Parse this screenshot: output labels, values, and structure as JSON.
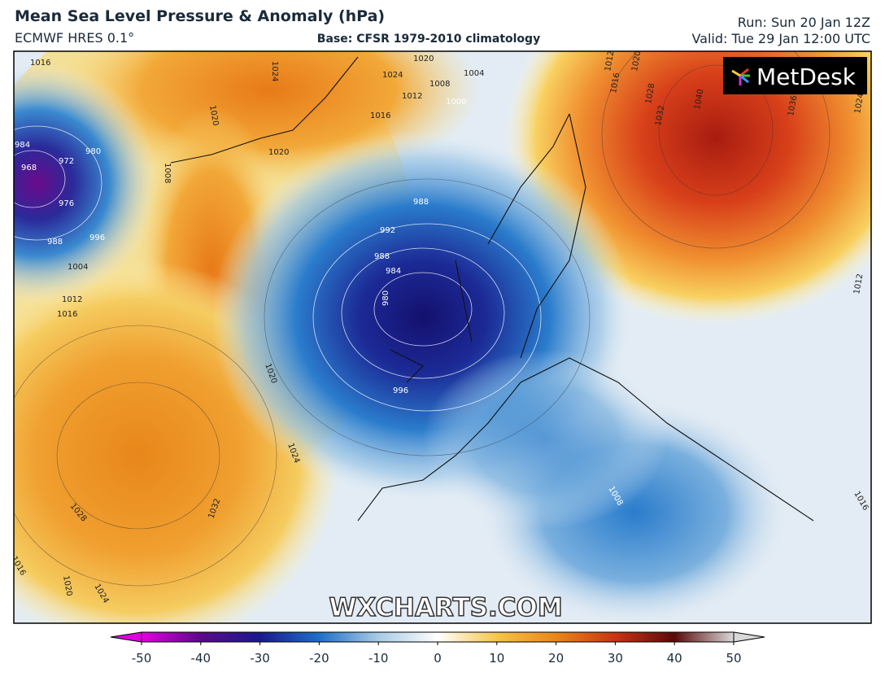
{
  "header": {
    "title": "Mean Sea Level Pressure & Anomaly (hPa)",
    "model": "ECMWF HRES 0.1°",
    "base": "Base: CFSR 1979-2010 climatology",
    "run": "Run: Sun 20 Jan 12Z",
    "valid": "Valid: Tue 29 Jan 12:00 UTC"
  },
  "map": {
    "logo": "MetDesk",
    "watermark": "WXCHARTS.COM",
    "isobar_labels": [
      1016,
      1024,
      1020,
      1024,
      1020,
      1016,
      1012,
      1008,
      1004,
      1000,
      1020,
      984,
      968,
      972,
      980,
      976,
      988,
      996,
      1008,
      1004,
      1012,
      1016,
      988,
      992,
      988,
      984,
      980,
      996,
      1020,
      1024,
      1028,
      1032,
      1020,
      1024,
      1016,
      1012,
      1016,
      1020,
      1028,
      1032,
      1040,
      1036,
      1024,
      1012,
      1008,
      1016
    ]
  },
  "colorbar": {
    "lim": [
      -50,
      50
    ],
    "ticks": [
      -50,
      -40,
      -30,
      -20,
      -10,
      0,
      10,
      20,
      30,
      40,
      50
    ],
    "colors": [
      "#e000e0",
      "#5a0a8a",
      "#1a1a8c",
      "#1f6fc8",
      "#a8cbe6",
      "#ffffff",
      "#f5c64a",
      "#e8861a",
      "#c83414",
      "#5a0a0a",
      "#d8d8d8"
    ]
  }
}
